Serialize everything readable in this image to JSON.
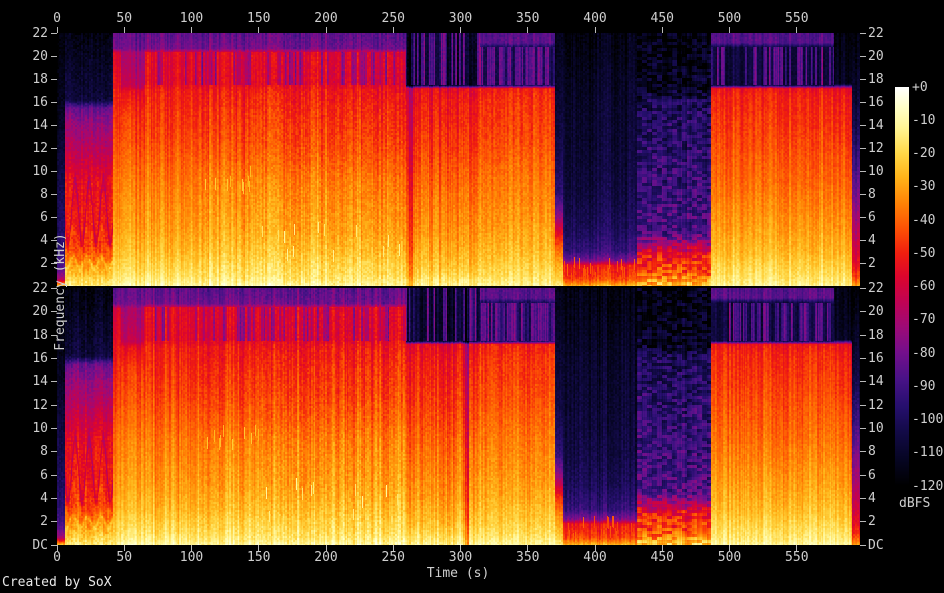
{
  "window": {
    "footer": "Created by SoX"
  },
  "chart_data": {
    "type": "heatmap",
    "subtype": "stereo_spectrogram",
    "title": "",
    "xlabel": "Time (s)",
    "ylabel": "Frequency (kHz)",
    "colorbar_label": "dBFS",
    "channels": 2,
    "x_ticks": [
      0,
      50,
      100,
      150,
      200,
      250,
      300,
      350,
      400,
      450,
      500,
      550
    ],
    "x_max_s": 597,
    "x_axis_repeated_top_and_bottom": true,
    "y_tick_labels_top_channel": [
      "22",
      "20",
      "18",
      "16",
      "14",
      "12",
      "10",
      "8",
      "6",
      "4",
      "2"
    ],
    "y_tick_labels_bottom_channel": [
      "22",
      "20",
      "18",
      "16",
      "14",
      "12",
      "10",
      "8",
      "6",
      "4",
      "2",
      "DC"
    ],
    "y_labels_mirrored_right": true,
    "y_max_khz": 22.05,
    "colorbar_ticks": [
      "+0",
      "-10",
      "-20",
      "-30",
      "-40",
      "-50",
      "-60",
      "-70",
      "-80",
      "-90",
      "-100",
      "-110",
      "-120"
    ],
    "colorbar_db_range": [
      0,
      -120
    ],
    "background_color": "#000000",
    "text_color": "#cfcfcf",
    "palette": [
      {
        "db": 0,
        "rgb": [
          255,
          255,
          255
        ]
      },
      {
        "db": -6,
        "rgb": [
          255,
          255,
          200
        ]
      },
      {
        "db": -12,
        "rgb": [
          255,
          245,
          150
        ]
      },
      {
        "db": -20,
        "rgb": [
          255,
          215,
          70
        ]
      },
      {
        "db": -27,
        "rgb": [
          255,
          180,
          25
        ]
      },
      {
        "db": -35,
        "rgb": [
          255,
          130,
          5
        ]
      },
      {
        "db": -43,
        "rgb": [
          252,
          78,
          5
        ]
      },
      {
        "db": -50,
        "rgb": [
          240,
          30,
          15
        ]
      },
      {
        "db": -57,
        "rgb": [
          220,
          5,
          45
        ]
      },
      {
        "db": -65,
        "rgb": [
          190,
          3,
          85
        ]
      },
      {
        "db": -72,
        "rgb": [
          158,
          10,
          118
        ]
      },
      {
        "db": -80,
        "rgb": [
          115,
          15,
          140
        ]
      },
      {
        "db": -88,
        "rgb": [
          72,
          18,
          135
        ]
      },
      {
        "db": -96,
        "rgb": [
          38,
          15,
          110
        ]
      },
      {
        "db": -104,
        "rgb": [
          18,
          10,
          70
        ]
      },
      {
        "db": -112,
        "rgb": [
          6,
          5,
          35
        ]
      },
      {
        "db": -120,
        "rgb": [
          0,
          0,
          0
        ]
      }
    ],
    "segments": [
      {
        "t": [
          0,
          5.5
        ],
        "p": [
          [
            0,
            -22
          ],
          [
            0.2,
            -38
          ],
          [
            0.6,
            -68
          ],
          [
            1.5,
            -85
          ],
          [
            3,
            -95
          ],
          [
            6,
            -100
          ],
          [
            10,
            -105
          ],
          [
            14,
            -112
          ],
          [
            22.05,
            -118
          ]
        ],
        "stripe": 2,
        "sp": [
          2,
          2,
          3
        ]
      },
      {
        "t": [
          5.5,
          41.5
        ],
        "p": [
          [
            0,
            -14
          ],
          [
            0.8,
            -22
          ],
          [
            1.5,
            -30
          ],
          [
            2,
            -34
          ],
          [
            2.5,
            -40
          ],
          [
            3.5,
            -46
          ],
          [
            5,
            -50
          ],
          [
            9,
            -53
          ],
          [
            10,
            -58
          ],
          [
            12,
            -66
          ],
          [
            14,
            -73
          ],
          [
            15.5,
            -82
          ],
          [
            16.2,
            -106
          ],
          [
            22.05,
            -116
          ]
        ],
        "stripe": 3,
        "sp": [
          2,
          2,
          4
        ],
        "wave": true
      },
      {
        "t": [
          41.5,
          47
        ],
        "p": [
          [
            0,
            -10
          ],
          [
            0.5,
            -15
          ],
          [
            1,
            -18
          ],
          [
            2,
            -22
          ],
          [
            3,
            -26
          ],
          [
            5,
            -31
          ],
          [
            7,
            -34
          ],
          [
            9,
            -37
          ],
          [
            11,
            -41
          ],
          [
            13,
            -45
          ],
          [
            15,
            -48
          ],
          [
            17,
            -51
          ],
          [
            17.4,
            -53
          ],
          [
            19,
            -56
          ],
          [
            20.3,
            -58
          ],
          [
            20.7,
            -80
          ],
          [
            22.05,
            -84
          ]
        ],
        "stripe": 4,
        "sp": [
          2,
          2,
          2.5
        ]
      },
      {
        "t": [
          47,
          64
        ],
        "p": [
          [
            0,
            -10
          ],
          [
            0.5,
            -15
          ],
          [
            1,
            -18
          ],
          [
            2,
            -22
          ],
          [
            3,
            -26
          ],
          [
            5,
            -31
          ],
          [
            7,
            -34
          ],
          [
            9,
            -37
          ],
          [
            11,
            -41
          ],
          [
            13,
            -45
          ],
          [
            15,
            -48
          ],
          [
            17,
            -56
          ],
          [
            17.4,
            -66
          ],
          [
            19,
            -70
          ],
          [
            20.3,
            -72
          ],
          [
            20.7,
            -82
          ],
          [
            22.05,
            -85
          ]
        ],
        "stripe": 4,
        "sp": [
          2,
          2,
          2.5
        ]
      },
      {
        "t": [
          64,
          105
        ],
        "p": [
          [
            0,
            -10
          ],
          [
            0.5,
            -15
          ],
          [
            1,
            -18
          ],
          [
            2,
            -22
          ],
          [
            3,
            -26
          ],
          [
            5,
            -31
          ],
          [
            7,
            -34
          ],
          [
            9,
            -37
          ],
          [
            11,
            -41
          ],
          [
            13,
            -45
          ],
          [
            15,
            -48
          ],
          [
            17,
            -51
          ],
          [
            17.4,
            -54
          ],
          [
            19,
            -57
          ],
          [
            20.3,
            -59
          ],
          [
            20.7,
            -80
          ],
          [
            22.05,
            -84
          ]
        ],
        "stripe": 5,
        "sp": [
          2,
          2,
          2.5
        ],
        "hfstripe": {
          "above": 17.5,
          "to": 20.4,
          "base": -56,
          "amp": -22,
          "prob": 0.3
        }
      },
      {
        "t": [
          105,
          151
        ],
        "p": [
          [
            0,
            -9
          ],
          [
            0.5,
            -14
          ],
          [
            1,
            -17
          ],
          [
            2,
            -20
          ],
          [
            3,
            -24
          ],
          [
            5,
            -29
          ],
          [
            7,
            -32
          ],
          [
            9,
            -35
          ],
          [
            11,
            -40
          ],
          [
            13,
            -44
          ],
          [
            15,
            -47
          ],
          [
            17,
            -51
          ],
          [
            17.4,
            -54
          ],
          [
            19,
            -57
          ],
          [
            20.3,
            -59
          ],
          [
            20.7,
            -80
          ],
          [
            22.05,
            -84
          ]
        ],
        "stripe": 5,
        "sp": [
          2,
          2,
          3
        ],
        "hfstripe": {
          "above": 17.5,
          "to": 20.4,
          "base": -56,
          "amp": -22,
          "prob": 0.3
        },
        "spots": {
          "f": [
            8.5,
            10
          ],
          "db": -27,
          "prob": 0.15
        }
      },
      {
        "t": [
          151,
          259
        ],
        "p": [
          [
            0,
            -9
          ],
          [
            0.5,
            -14
          ],
          [
            1,
            -17
          ],
          [
            2,
            -20
          ],
          [
            3,
            -24
          ],
          [
            5,
            -29
          ],
          [
            7,
            -32
          ],
          [
            9,
            -35
          ],
          [
            11,
            -40
          ],
          [
            13,
            -44
          ],
          [
            15,
            -47
          ],
          [
            17,
            -51
          ],
          [
            17.4,
            -54
          ],
          [
            19,
            -57
          ],
          [
            20.3,
            -59
          ],
          [
            20.7,
            -80
          ],
          [
            22.05,
            -84
          ]
        ],
        "stripe": 5,
        "sp": [
          2,
          2,
          3.5
        ],
        "hfstripe": {
          "above": 17.5,
          "to": 20.4,
          "base": -56,
          "amp": -22,
          "prob": 0.3
        },
        "spots": {
          "f": [
            2,
            5.5
          ],
          "db": -17,
          "prob": 0.12
        }
      },
      {
        "t": [
          259,
          314
        ],
        "p": [
          [
            0,
            -12
          ],
          [
            0.5,
            -16
          ],
          [
            1,
            -20
          ],
          [
            2,
            -25
          ],
          [
            4,
            -31
          ],
          [
            6,
            -35
          ],
          [
            8,
            -38
          ],
          [
            10,
            -42
          ],
          [
            12,
            -46
          ],
          [
            14,
            -49
          ],
          [
            16,
            -52
          ],
          [
            17.2,
            -55
          ],
          [
            17.5,
            -110
          ],
          [
            22.05,
            -112
          ]
        ],
        "stripe": 5,
        "sp": [
          2,
          2,
          3
        ],
        "hfstripe": {
          "above": 17.5,
          "to": 22.05,
          "base": -110,
          "amp": 32,
          "prob": 0.45
        },
        "gap": {
          "prob": 0.1,
          "db": -20
        }
      },
      {
        "t": [
          314,
          370
        ],
        "p": [
          [
            0,
            -11
          ],
          [
            0.5,
            -15
          ],
          [
            1,
            -18
          ],
          [
            2,
            -22
          ],
          [
            4,
            -28
          ],
          [
            6,
            -32
          ],
          [
            8,
            -35
          ],
          [
            10,
            -38
          ],
          [
            12,
            -42
          ],
          [
            14,
            -45
          ],
          [
            16,
            -47
          ],
          [
            17.2,
            -50
          ],
          [
            17.5,
            -102
          ],
          [
            20.8,
            -100
          ],
          [
            21.2,
            -84
          ],
          [
            22.05,
            -86
          ]
        ],
        "stripe": 4,
        "sp": [
          2,
          2,
          3
        ],
        "hfstripe": {
          "above": 17.5,
          "to": 20.8,
          "base": -102,
          "amp": 26,
          "prob": 0.65
        }
      },
      {
        "t": [
          370,
          376
        ],
        "p": [
          [
            0,
            -14
          ],
          [
            0.5,
            -20
          ],
          [
            1,
            -24
          ],
          [
            2,
            -30
          ],
          [
            3,
            -38
          ],
          [
            4,
            -48
          ],
          [
            5,
            -60
          ],
          [
            6,
            -75
          ],
          [
            8,
            -95
          ],
          [
            12,
            -105
          ],
          [
            22.05,
            -115
          ]
        ],
        "stripe": 3,
        "sp": [
          2,
          2,
          3
        ]
      },
      {
        "t": [
          376,
          431
        ],
        "p": [
          [
            0,
            -26
          ],
          [
            0.3,
            -36
          ],
          [
            0.6,
            -44
          ],
          [
            1,
            -48
          ],
          [
            1.8,
            -52
          ],
          [
            2.2,
            -78
          ],
          [
            3,
            -92
          ],
          [
            5,
            -100
          ],
          [
            8,
            -105
          ],
          [
            12,
            -108
          ],
          [
            16,
            -110
          ],
          [
            22.05,
            -116
          ]
        ],
        "stripe": 4,
        "sp": [
          2,
          2,
          3
        ],
        "spots": {
          "f": [
            0.4,
            2.1
          ],
          "db": -45,
          "prob": 0.3
        }
      },
      {
        "t": [
          431,
          486
        ],
        "p": [
          [
            0,
            -22
          ],
          [
            0.4,
            -30
          ],
          [
            0.8,
            -38
          ],
          [
            1.2,
            -44
          ],
          [
            2,
            -48
          ],
          [
            2.8,
            -54
          ],
          [
            3.5,
            -68
          ],
          [
            4.5,
            -88
          ],
          [
            8,
            -92
          ],
          [
            12,
            -96
          ],
          [
            16,
            -101
          ],
          [
            17,
            -112
          ],
          [
            22.05,
            -117
          ]
        ],
        "stripe": 3,
        "sp": [
          5,
          3,
          11
        ]
      },
      {
        "t": [
          486,
          577
        ],
        "p": [
          [
            0,
            -10
          ],
          [
            0.4,
            -14
          ],
          [
            1,
            -17
          ],
          [
            2,
            -21
          ],
          [
            3,
            -25
          ],
          [
            5,
            -30
          ],
          [
            7,
            -34
          ],
          [
            9,
            -38
          ],
          [
            11,
            -41
          ],
          [
            13,
            -44
          ],
          [
            15,
            -47
          ],
          [
            16.5,
            -49
          ],
          [
            17.2,
            -52
          ],
          [
            17.5,
            -106
          ],
          [
            20.8,
            -104
          ],
          [
            21.2,
            -84
          ],
          [
            22.05,
            -86
          ]
        ],
        "stripe": 4,
        "sp": [
          2,
          2,
          2.5
        ],
        "hfstripe": {
          "above": 17.5,
          "to": 20.8,
          "base": -106,
          "amp": 28,
          "prob": 0.45
        }
      },
      {
        "t": [
          577,
          591
        ],
        "p": [
          [
            0,
            -11
          ],
          [
            0.5,
            -15
          ],
          [
            1,
            -18
          ],
          [
            2,
            -22
          ],
          [
            3,
            -26
          ],
          [
            5,
            -31
          ],
          [
            7,
            -35
          ],
          [
            9,
            -39
          ],
          [
            11,
            -42
          ],
          [
            13,
            -46
          ],
          [
            15,
            -49
          ],
          [
            16.5,
            -51
          ],
          [
            17.2,
            -54
          ],
          [
            17.6,
            -112
          ],
          [
            22.05,
            -116
          ]
        ],
        "stripe": 4,
        "sp": [
          2,
          2,
          2.5
        ]
      },
      {
        "t": [
          591,
          597.5
        ],
        "p": [
          [
            0,
            -30
          ],
          [
            0.5,
            -40
          ],
          [
            1,
            -48
          ],
          [
            2,
            -55
          ],
          [
            4,
            -65
          ],
          [
            6,
            -72
          ],
          [
            8,
            -80
          ],
          [
            10,
            -88
          ],
          [
            12,
            -96
          ],
          [
            14,
            -103
          ],
          [
            17,
            -110
          ],
          [
            22.05,
            -118
          ]
        ],
        "stripe": 3,
        "sp": [
          2,
          2,
          3
        ]
      }
    ]
  }
}
